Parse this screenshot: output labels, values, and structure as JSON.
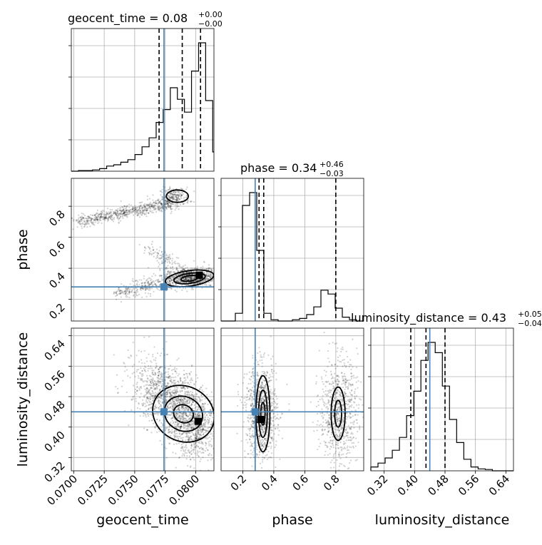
{
  "chart_data": {
    "type": "corner",
    "parameters": [
      "geocent_time",
      "phase",
      "luminosity_distance"
    ],
    "truths": {
      "geocent_time": 0.0774,
      "phase": 0.28,
      "luminosity_distance": 0.44
    },
    "titles": [
      {
        "param": "geocent_time",
        "main": "geocent_time = 0.08",
        "plus": "+0.00",
        "minus": "−0.00"
      },
      {
        "param": "phase",
        "main": "phase = 0.34",
        "plus": "+0.46",
        "minus": "−0.03"
      },
      {
        "param": "luminosity_distance",
        "main": "luminosity_distance = 0.43",
        "plus": "+0.05",
        "minus": "−0.04"
      }
    ],
    "axis_labels": {
      "geocent_time": "geocent_time",
      "phase": "phase",
      "luminosity_distance": "luminosity_distance"
    },
    "ranges": {
      "geocent_time": [
        0.0698,
        0.0815
      ],
      "phase": [
        0.06,
        0.98
      ],
      "luminosity_distance": [
        0.285,
        0.66
      ]
    },
    "ticks": {
      "geocent_time": [
        "0.0700",
        "0.0725",
        "0.0750",
        "0.0775",
        "0.0800"
      ],
      "phase": [
        "0.2",
        "0.4",
        "0.6",
        "0.8"
      ],
      "luminosity_distance": [
        "0.32",
        "0.40",
        "0.48",
        "0.56",
        "0.64"
      ]
    },
    "quantiles": {
      "geocent_time": [
        0.077,
        0.0789,
        0.0804
      ],
      "phase": [
        0.305,
        0.335,
        0.8
      ],
      "luminosity_distance": [
        0.39,
        0.43,
        0.48
      ]
    },
    "histograms": {
      "geocent_time": {
        "edges_start": 0.0698,
        "bin_width": 0.00058,
        "counts": [
          0.0,
          0.005,
          0.005,
          0.01,
          0.02,
          0.04,
          0.05,
          0.07,
          0.09,
          0.13,
          0.19,
          0.26,
          0.38,
          0.48,
          0.65,
          0.56,
          0.46,
          0.78,
          1.0,
          0.55,
          0.15
        ]
      },
      "phase": {
        "edges_start": 0.06,
        "bin_width": 0.046,
        "counts": [
          0.0,
          0.0,
          0.06,
          0.9,
          1.0,
          0.55,
          0.06,
          0.01,
          0.0,
          0.0,
          0.01,
          0.02,
          0.05,
          0.11,
          0.24,
          0.21,
          0.1,
          0.03,
          0.01,
          0.0
        ]
      },
      "luminosity_distance": {
        "edges_start": 0.285,
        "bin_width": 0.0188,
        "counts": [
          0.03,
          0.06,
          0.1,
          0.16,
          0.26,
          0.43,
          0.62,
          0.86,
          1.0,
          0.92,
          0.66,
          0.4,
          0.22,
          0.09,
          0.03,
          0.015,
          0.01,
          0.0,
          0.0,
          0.0
        ]
      }
    }
  }
}
